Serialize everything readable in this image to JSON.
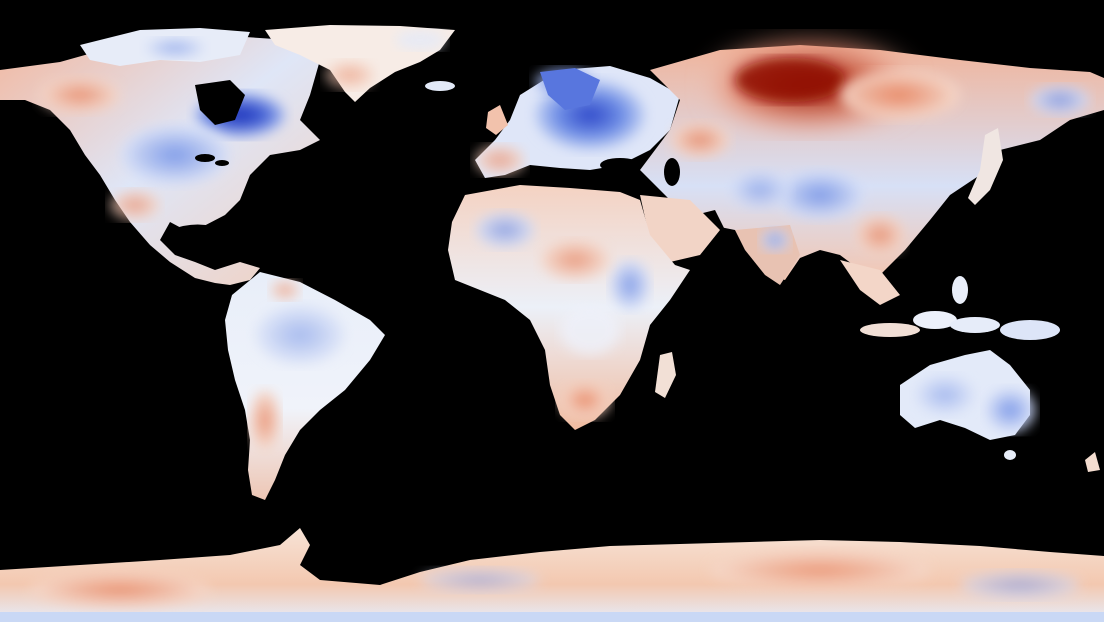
{
  "map": {
    "projection": "equirectangular",
    "background_color": "#000000",
    "ocean_color": "#000000",
    "colormap": {
      "type": "diverging",
      "cold_extreme": "#1a2fb8",
      "cold": "#6f8fe6",
      "neutral": "#f4f1ee",
      "warm": "#f0a487",
      "warm_extreme": "#8f0f06"
    },
    "regions": [
      {
        "name": "north-america",
        "anomaly": "mixed-cool"
      },
      {
        "name": "hudson-bay",
        "anomaly": "strong-cool"
      },
      {
        "name": "greenland",
        "anomaly": "slight-warm"
      },
      {
        "name": "south-america",
        "anomaly": "slight-cool"
      },
      {
        "name": "europe",
        "anomaly": "cool"
      },
      {
        "name": "siberia",
        "anomaly": "strong-warm"
      },
      {
        "name": "africa",
        "anomaly": "mixed"
      },
      {
        "name": "asia",
        "anomaly": "mixed"
      },
      {
        "name": "australia",
        "anomaly": "cool"
      },
      {
        "name": "antarctica",
        "anomaly": "slight-warm"
      }
    ]
  }
}
